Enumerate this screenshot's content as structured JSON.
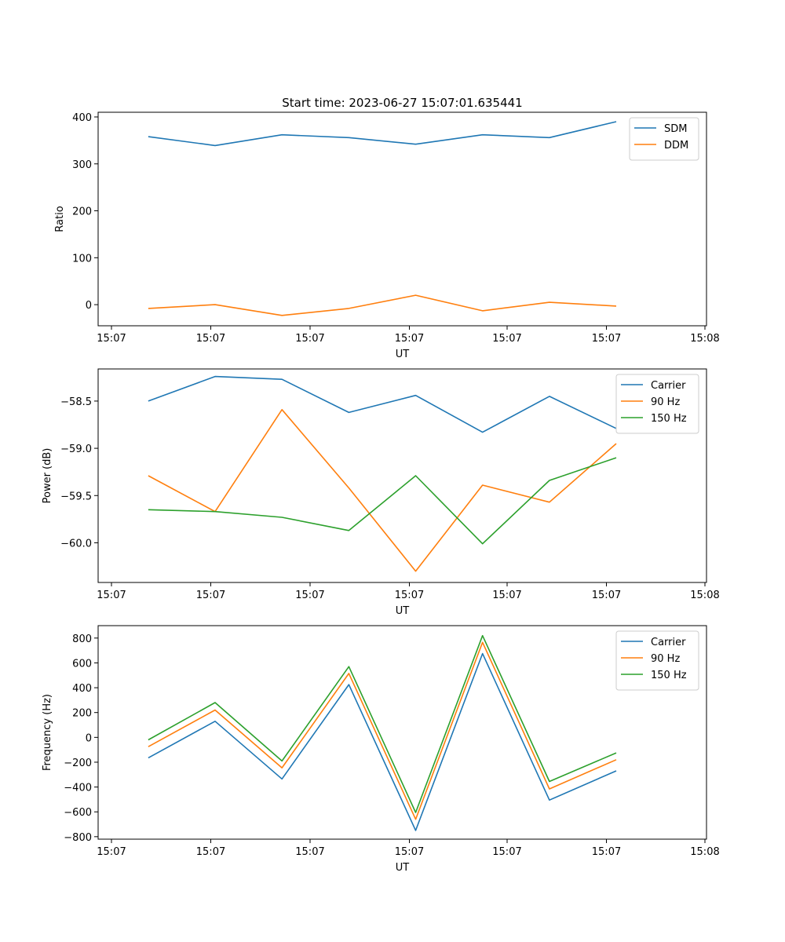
{
  "figure_title": "Start time: 2023-06-27 15:07:01.635441",
  "chart_data": [
    {
      "type": "line",
      "title": "Start time: 2023-06-27 15:07:01.635441",
      "xlabel": "UT",
      "ylabel": "Ratio",
      "x_tick_labels": [
        "15:07",
        "15:07",
        "15:07",
        "15:07",
        "15:07",
        "15:07",
        "15:08"
      ],
      "x": [
        1,
        2,
        3,
        4,
        5,
        6,
        7,
        8
      ],
      "xlim": [
        0.25,
        9.35
      ],
      "ylim": [
        -45,
        410
      ],
      "yticks": [
        0,
        100,
        200,
        300,
        400
      ],
      "ytick_labels": [
        "0",
        "100",
        "200",
        "300",
        "400"
      ],
      "legend": "upper right",
      "series": [
        {
          "name": "SDM",
          "color": "#1f77b4",
          "values": [
            358,
            339,
            362,
            356,
            342,
            362,
            356,
            390
          ]
        },
        {
          "name": "DDM",
          "color": "#ff7f0e",
          "values": [
            -8,
            0,
            -23,
            -8,
            20,
            -13,
            5,
            -3
          ]
        }
      ]
    },
    {
      "type": "line",
      "xlabel": "UT",
      "ylabel": "Power (dB)",
      "x_tick_labels": [
        "15:07",
        "15:07",
        "15:07",
        "15:07",
        "15:07",
        "15:07",
        "15:08"
      ],
      "x": [
        1,
        2,
        3,
        4,
        5,
        6,
        7,
        8
      ],
      "xlim": [
        0.25,
        9.35
      ],
      "ylim": [
        -60.42,
        -58.16
      ],
      "yticks": [
        -58.5,
        -59.0,
        -59.5,
        -60.0
      ],
      "ytick_labels": [
        "−58.5",
        "−59.0",
        "−59.5",
        "−60.0"
      ],
      "legend": "upper right",
      "series": [
        {
          "name": "Carrier",
          "color": "#1f77b4",
          "values": [
            -58.5,
            -58.24,
            -58.27,
            -58.62,
            -58.44,
            -58.83,
            -58.45,
            -58.79
          ]
        },
        {
          "name": "90 Hz",
          "color": "#ff7f0e",
          "values": [
            -59.29,
            -59.67,
            -58.59,
            -59.42,
            -60.3,
            -59.39,
            -59.57,
            -58.95
          ]
        },
        {
          "name": "150 Hz",
          "color": "#2ca02c",
          "values": [
            -59.65,
            -59.67,
            -59.73,
            -59.87,
            -59.29,
            -60.01,
            -59.34,
            -59.1
          ]
        }
      ]
    },
    {
      "type": "line",
      "xlabel": "UT",
      "ylabel": "Frequency (Hz)",
      "x_tick_labels": [
        "15:07",
        "15:07",
        "15:07",
        "15:07",
        "15:07",
        "15:07",
        "15:08"
      ],
      "x": [
        1,
        2,
        3,
        4,
        5,
        6,
        7,
        8
      ],
      "xlim": [
        0.25,
        9.35
      ],
      "ylim": [
        -820,
        900
      ],
      "yticks": [
        800,
        600,
        400,
        200,
        0,
        -200,
        -400,
        -600,
        -800
      ],
      "ytick_labels": [
        "800",
        "600",
        "400",
        "200",
        "0",
        "−200",
        "−400",
        "−600",
        "−800"
      ],
      "legend": "upper right",
      "series": [
        {
          "name": "Carrier",
          "color": "#1f77b4",
          "values": [
            -165,
            130,
            -335,
            425,
            -750,
            675,
            -505,
            -270
          ]
        },
        {
          "name": "90 Hz",
          "color": "#ff7f0e",
          "values": [
            -75,
            220,
            -245,
            515,
            -660,
            765,
            -415,
            -180
          ]
        },
        {
          "name": "150 Hz",
          "color": "#2ca02c",
          "values": [
            -20,
            280,
            -190,
            570,
            -605,
            820,
            -355,
            -125
          ]
        }
      ]
    }
  ]
}
